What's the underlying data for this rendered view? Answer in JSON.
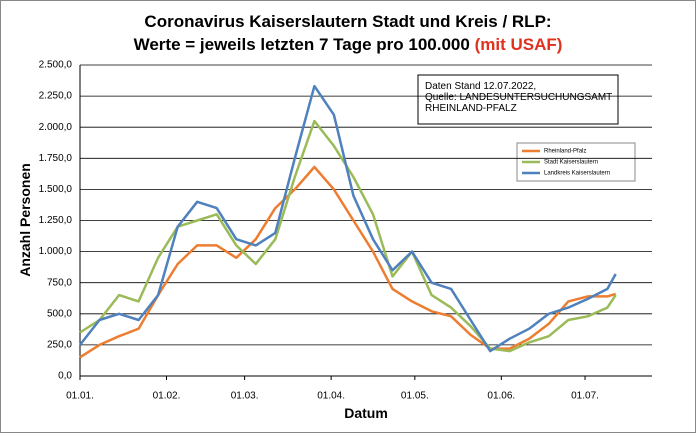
{
  "chart_data": {
    "type": "line",
    "title": "Coronavirus Kaiserslautern Stadt und Kreis / RLP:",
    "subtitle": "Werte = jeweils letzten 7 Tage pro 100.000",
    "subtitle_highlight": "(mit USAF)",
    "annotation": [
      "Daten Stand 12.07.2022,",
      "Quelle: LANDESUNTERSUCHUNGSAMT",
      "RHEINLAND-PFALZ"
    ],
    "x_label": "Datum",
    "y_label": "Anzahl Personen",
    "x": [
      0,
      7,
      14,
      21,
      28,
      35,
      42,
      49,
      56,
      63,
      70,
      77,
      84,
      91,
      98,
      105,
      112,
      119,
      126,
      133,
      140,
      147,
      154,
      161,
      168,
      175,
      182,
      189,
      192
    ],
    "xlim": [
      0,
      205
    ],
    "xticks": [
      {
        "value": 0,
        "label": "01.01."
      },
      {
        "value": 31,
        "label": "01.02."
      },
      {
        "value": 59,
        "label": "01.03."
      },
      {
        "value": 90,
        "label": "01.04."
      },
      {
        "value": 120,
        "label": "01.05."
      },
      {
        "value": 151,
        "label": "01.06."
      },
      {
        "value": 181,
        "label": "01.07."
      }
    ],
    "ylim": [
      0,
      2500
    ],
    "yticks": [
      {
        "value": 0,
        "label": "0,0"
      },
      {
        "value": 250,
        "label": "250,0"
      },
      {
        "value": 500,
        "label": "500,0"
      },
      {
        "value": 750,
        "label": "750,0"
      },
      {
        "value": 1000,
        "label": "1.000,0"
      },
      {
        "value": 1250,
        "label": "1.250,0"
      },
      {
        "value": 1500,
        "label": "1.500,0"
      },
      {
        "value": 1750,
        "label": "1.750,0"
      },
      {
        "value": 2000,
        "label": "2.000,0"
      },
      {
        "value": 2250,
        "label": "2.250,0"
      },
      {
        "value": 2500,
        "label": "2.500,0"
      }
    ],
    "grid": true,
    "series": [
      {
        "name": "Rheinland-Pfalz",
        "color": "#ed7d31",
        "values": [
          150,
          250,
          320,
          380,
          650,
          900,
          1050,
          1050,
          950,
          1100,
          1350,
          1500,
          1680,
          1500,
          1250,
          1000,
          700,
          600,
          520,
          480,
          330,
          220,
          220,
          300,
          420,
          600,
          640,
          640,
          660
        ]
      },
      {
        "name": "Stadt Kaiserslautern",
        "color": "#9bbb59",
        "values": [
          350,
          450,
          650,
          600,
          950,
          1200,
          1250,
          1300,
          1050,
          900,
          1100,
          1600,
          2050,
          1850,
          1600,
          1300,
          800,
          1000,
          650,
          550,
          400,
          220,
          200,
          270,
          320,
          450,
          480,
          550,
          650
        ]
      },
      {
        "name": "Landkreis Kaiserslautern",
        "color": "#4f81bd",
        "values": [
          250,
          450,
          500,
          450,
          650,
          1200,
          1400,
          1350,
          1100,
          1050,
          1150,
          1750,
          2330,
          2100,
          1450,
          1100,
          850,
          1000,
          750,
          700,
          450,
          200,
          300,
          380,
          500,
          550,
          620,
          700,
          820
        ]
      }
    ]
  }
}
